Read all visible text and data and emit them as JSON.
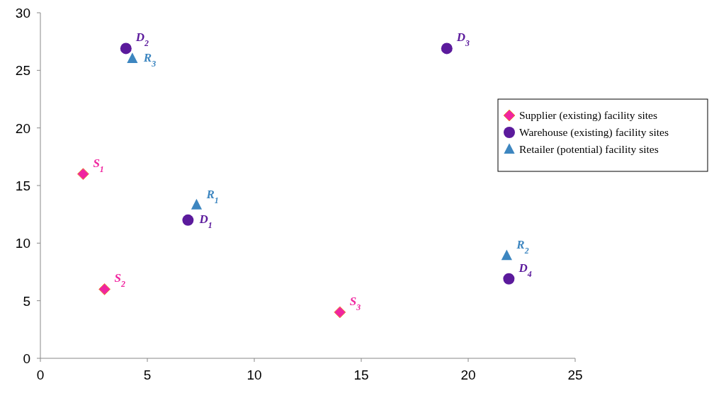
{
  "chart_data": {
    "type": "scatter",
    "legend": "right",
    "grid": false,
    "xlim": [
      0,
      25
    ],
    "xticks": [
      0,
      5,
      10,
      15,
      20,
      25
    ],
    "ylim": [
      0,
      30
    ],
    "yticks": [
      0,
      5,
      10,
      15,
      20,
      25,
      30
    ],
    "series": [
      {
        "name": "Supplier (existing) facility sites",
        "color": "#f0259f",
        "marker": "diamond",
        "x": [
          2,
          3,
          14
        ],
        "values": [
          16,
          6,
          4
        ]
      },
      {
        "name": "Warehouse (existing) facility sites",
        "color": "#5b1a9c",
        "marker": "circle",
        "x": [
          6.9,
          4,
          19,
          21.9
        ],
        "values": [
          12,
          26.9,
          26.9,
          6.9
        ]
      },
      {
        "name": "Retailer (potential) facility sites",
        "color": "#3d86c0",
        "marker": "triangle",
        "x": [
          7.3,
          21.8,
          4.3
        ],
        "values": [
          13.3,
          8.9,
          26
        ]
      }
    ],
    "annotations": [
      {
        "text": "S$_{1}$",
        "x": 2,
        "y": 16
      },
      {
        "text": "S$_{2}$",
        "x": 3,
        "y": 6
      },
      {
        "text": "S$_{3}$",
        "x": 14,
        "y": 4
      },
      {
        "text": "D$_{1}$",
        "x": 6.9,
        "y": 12
      },
      {
        "text": "D$_{2}$",
        "x": 4,
        "y": 26.9
      },
      {
        "text": "D$_{3}$",
        "x": 19,
        "y": 26.9
      },
      {
        "text": "D$_{4}$",
        "x": 21.9,
        "y": 6.9
      },
      {
        "text": "R$_{1}$",
        "x": 7.3,
        "y": 13.3
      },
      {
        "text": "R$_{2}$",
        "x": 21.8,
        "y": 8.9
      },
      {
        "text": "R$_{3}$",
        "x": 4.3,
        "y": 26
      }
    ]
  }
}
